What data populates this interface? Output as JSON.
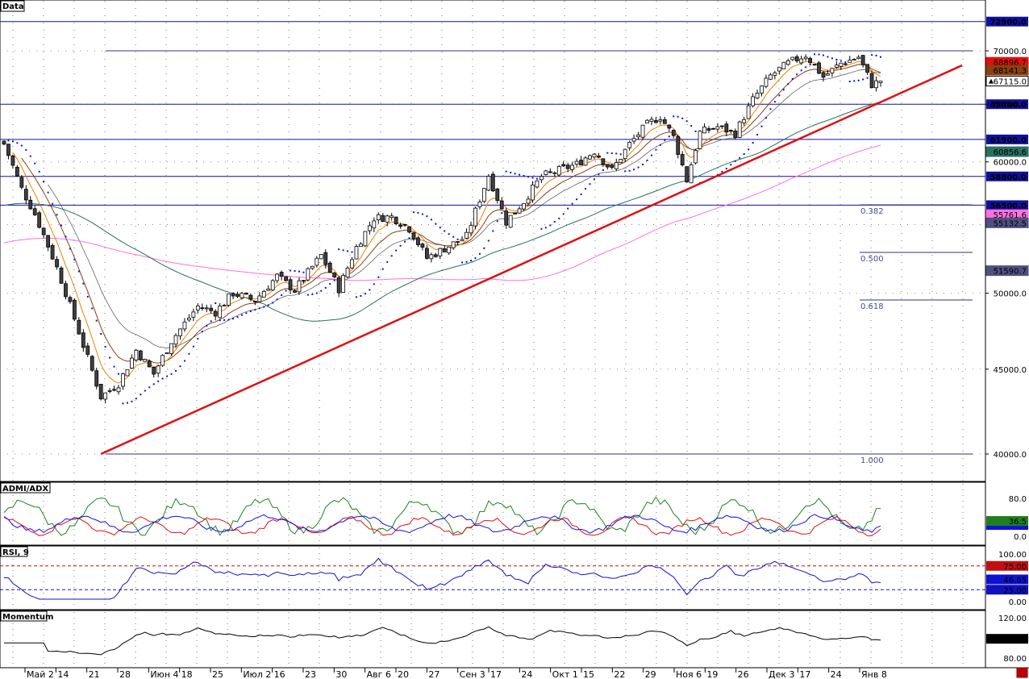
{
  "panels": {
    "price": "Data",
    "admi": "ADMI/ADX",
    "rsi": "RSI, 9",
    "momentum": "Momentum"
  },
  "colors": {
    "bull": "#ffffff",
    "bear": "#404040",
    "trendline": "#e01010",
    "hline": "#1010a0",
    "ema_fast": "#f08000",
    "ema_mid": "#8a4010",
    "sma_teal": "#2a7060",
    "sma_pink": "#ff70e0",
    "channel": "#505050",
    "psar": "#1010d0",
    "dmi_plus": "#208020",
    "dmi_minus": "#e01010",
    "adx": "#1010e0",
    "rsi": "#1010d0",
    "momentum": "#000000"
  },
  "chart_data": {
    "type": "candlestick",
    "x_labels": [
      "Май 2",
      "14",
      "21",
      "28",
      "Июн 4",
      "18",
      "25",
      "Июл 2",
      "16",
      "23",
      "30",
      "Авг 6",
      "20",
      "27",
      "Сен 3",
      "17",
      "24",
      "Окт 1",
      "15",
      "22",
      "29",
      "Ноя 6",
      "19",
      "26",
      "Дек 3",
      "17",
      "24",
      "Янв 8"
    ],
    "price_axis_ticks": [
      "70000.0",
      "65000.0",
      "60000.0",
      "50000.0",
      "45000.0",
      "40000.0"
    ],
    "horizontal_levels": [
      "72900.0",
      "65000.0",
      "61900.0",
      "58800.0",
      "56500.0"
    ],
    "fibonacci": {
      "labels": [
        "0.382",
        "0.500",
        "0.618",
        "1.000"
      ],
      "top_value": 70000,
      "bottom_value": 40000
    },
    "indicator_tags": [
      {
        "value": "68896.7",
        "color": "#e01010"
      },
      {
        "value": "68141.3",
        "color": "#8a4010"
      },
      {
        "value": "67115.0",
        "color": "#ffffff"
      },
      {
        "value": "60856.6",
        "color": "#2a7060"
      },
      {
        "value": "55761.6",
        "color": "#ff70e0"
      },
      {
        "value": "55132.5",
        "color": "#505080"
      },
      {
        "value": "51590.7",
        "color": "#505080"
      }
    ],
    "close_anchors": [
      [
        0,
        61500
      ],
      [
        4,
        57800
      ],
      [
        7,
        55800
      ],
      [
        12,
        51800
      ],
      [
        18,
        46500
      ],
      [
        22,
        43300
      ],
      [
        26,
        44100
      ],
      [
        30,
        46200
      ],
      [
        34,
        44700
      ],
      [
        38,
        46800
      ],
      [
        44,
        49100
      ],
      [
        48,
        48700
      ],
      [
        52,
        50000
      ],
      [
        57,
        49500
      ],
      [
        62,
        51200
      ],
      [
        66,
        50200
      ],
      [
        72,
        52700
      ],
      [
        76,
        50300
      ],
      [
        80,
        53300
      ],
      [
        84,
        55500
      ],
      [
        88,
        55600
      ],
      [
        92,
        54700
      ],
      [
        96,
        52500
      ],
      [
        100,
        53200
      ],
      [
        105,
        54100
      ],
      [
        110,
        58900
      ],
      [
        114,
        55200
      ],
      [
        118,
        56800
      ],
      [
        122,
        58800
      ],
      [
        126,
        59300
      ],
      [
        130,
        59800
      ],
      [
        134,
        60900
      ],
      [
        138,
        59300
      ],
      [
        142,
        61500
      ],
      [
        146,
        63200
      ],
      [
        149,
        63900
      ],
      [
        152,
        62100
      ],
      [
        155,
        58500
      ],
      [
        158,
        62500
      ],
      [
        162,
        63000
      ],
      [
        166,
        62400
      ],
      [
        170,
        65400
      ],
      [
        174,
        67600
      ],
      [
        178,
        68800
      ],
      [
        182,
        69600
      ],
      [
        186,
        67500
      ],
      [
        190,
        68800
      ],
      [
        194,
        69400
      ],
      [
        197,
        66800
      ],
      [
        199,
        67115
      ]
    ],
    "admi": {
      "axis": [
        "80.0",
        "0.0"
      ],
      "last": "36.5"
    },
    "rsi": {
      "axis": [
        "100.00",
        "0.00"
      ],
      "levels": [
        "75.00",
        "25.00"
      ],
      "last": "46.65"
    },
    "momentum": {
      "axis": [
        "120.00",
        "80.00"
      ],
      "last": "99.06"
    }
  }
}
